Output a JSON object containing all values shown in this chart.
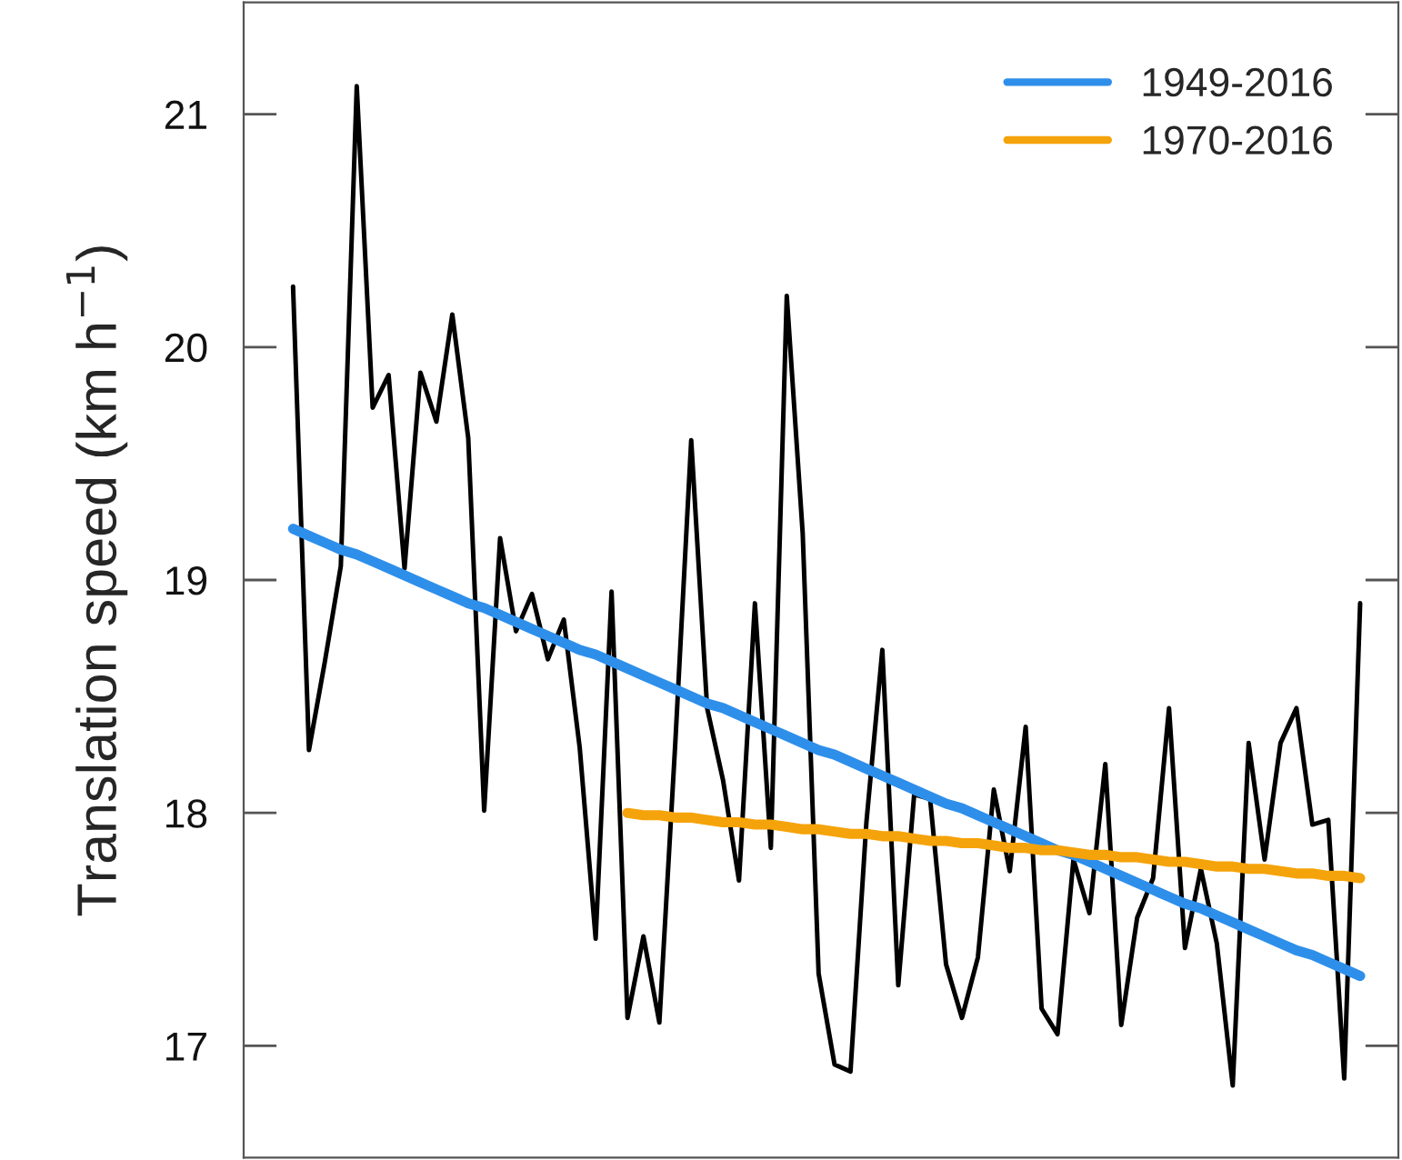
{
  "chart_data": {
    "type": "line",
    "ylabel": "Translation speed (km h$^{−1}$)",
    "categories": [
      null,
      null,
      null,
      null,
      null,
      null,
      null,
      null,
      null,
      null,
      null,
      null,
      null,
      null,
      null,
      null,
      null,
      null,
      null,
      null,
      null,
      null,
      null,
      null,
      null,
      null,
      null,
      null,
      null,
      null,
      null,
      null,
      null,
      null,
      null,
      null,
      null,
      null,
      null,
      null,
      null,
      null,
      null,
      null,
      null,
      null,
      null,
      null,
      null,
      null,
      null,
      null,
      null,
      null,
      null,
      null,
      null,
      null,
      null,
      null,
      null,
      null,
      null,
      null,
      null,
      null,
      null,
      null
    ],
    "series": [
      {
        "color": "#000000",
        "values": [
          20.26,
          18.27,
          18.65,
          19.06,
          21.12,
          19.74,
          19.88,
          19.05,
          19.89,
          19.68,
          20.14,
          19.61,
          18.01,
          19.18,
          18.78,
          18.94,
          18.66,
          18.83,
          18.28,
          17.46,
          18.95,
          17.12,
          17.47,
          17.1,
          18.3,
          19.6,
          18.45,
          18.14,
          17.71,
          18.9,
          17.85,
          20.22,
          19.2,
          17.31,
          16.92,
          16.89,
          17.96,
          18.7,
          17.26,
          18.08,
          18.06,
          17.35,
          17.12,
          17.38,
          18.1,
          17.75,
          18.37,
          17.16,
          17.05,
          17.8,
          17.57,
          18.21,
          17.09,
          17.55,
          17.72,
          18.45,
          17.42,
          17.76,
          17.44,
          16.83,
          18.3,
          17.8,
          18.3,
          18.45,
          17.95,
          17.97,
          16.86,
          18.9
        ]
      },
      {
        "name": "1949-2016",
        "color": "#2e8fea",
        "values": [
          19.22,
          19.19,
          19.16,
          19.13,
          19.11,
          19.08,
          19.05,
          19.02,
          18.99,
          18.96,
          18.93,
          18.9,
          18.88,
          18.85,
          18.82,
          18.79,
          18.76,
          18.73,
          18.7,
          18.68,
          18.65,
          18.62,
          18.59,
          18.56,
          18.53,
          18.5,
          18.47,
          18.45,
          18.42,
          18.39,
          18.36,
          18.33,
          18.3,
          18.27,
          18.25,
          18.22,
          18.19,
          18.16,
          18.13,
          18.1,
          18.07,
          18.04,
          18.02,
          17.99,
          17.96,
          17.93,
          17.9,
          17.87,
          17.84,
          17.82,
          17.79,
          17.76,
          17.73,
          17.7,
          17.67,
          17.64,
          17.61,
          17.59,
          17.56,
          17.53,
          17.5,
          17.47,
          17.44,
          17.41,
          17.39,
          17.36,
          17.33,
          17.3
        ]
      },
      {
        "name": "1970-2016",
        "color": "#f5a30a",
        "values": [
          null,
          null,
          null,
          null,
          null,
          null,
          null,
          null,
          null,
          null,
          null,
          null,
          null,
          null,
          null,
          null,
          null,
          null,
          null,
          null,
          null,
          18.0,
          17.99,
          17.99,
          17.98,
          17.98,
          17.97,
          17.96,
          17.96,
          17.95,
          17.95,
          17.94,
          17.93,
          17.93,
          17.92,
          17.91,
          17.91,
          17.9,
          17.9,
          17.89,
          17.88,
          17.88,
          17.87,
          17.87,
          17.86,
          17.85,
          17.85,
          17.84,
          17.84,
          17.83,
          17.82,
          17.82,
          17.81,
          17.81,
          17.8,
          17.79,
          17.79,
          17.78,
          17.77,
          17.77,
          17.76,
          17.76,
          17.75,
          17.74,
          17.74,
          17.73,
          17.73,
          17.72
        ]
      }
    ],
    "ylim": [
      16.52,
      21.48
    ],
    "yticks": [
      17,
      18,
      19,
      20,
      21
    ],
    "tick_labels": "y",
    "legend": "top right",
    "line_style": "solid"
  }
}
